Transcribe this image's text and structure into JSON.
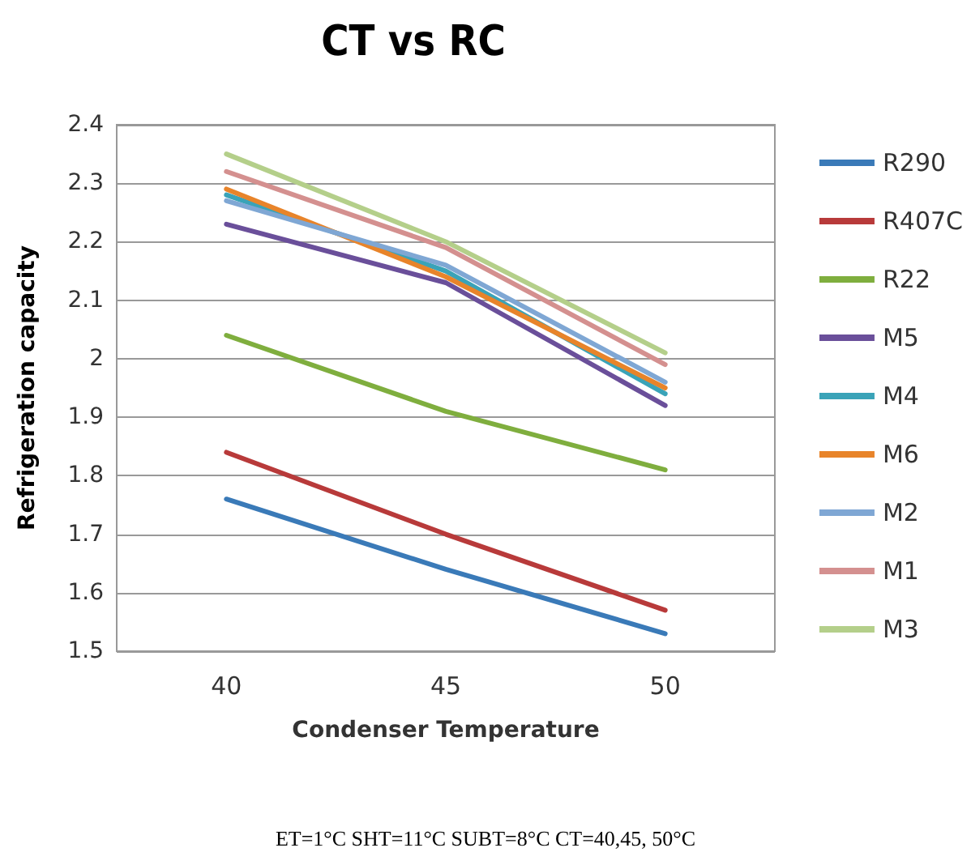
{
  "chart_data": {
    "type": "line",
    "title": "CT vs RC",
    "xlabel": "Condenser Temperature",
    "ylabel": "Refrigeration capacity",
    "categories": [
      "40",
      "45",
      "50"
    ],
    "series": [
      {
        "name": "R290",
        "color": "#3a7ab8",
        "values": [
          1.76,
          1.64,
          1.53
        ]
      },
      {
        "name": "R407C",
        "color": "#b83a3a",
        "values": [
          1.84,
          1.7,
          1.57
        ]
      },
      {
        "name": "R22",
        "color": "#7fae3e",
        "values": [
          2.04,
          1.91,
          1.81
        ]
      },
      {
        "name": "M5",
        "color": "#6a4f9a",
        "values": [
          2.23,
          2.13,
          1.92
        ]
      },
      {
        "name": "M4",
        "color": "#3aa3b8",
        "values": [
          2.28,
          2.15,
          1.94
        ]
      },
      {
        "name": "M6",
        "color": "#e8842a",
        "values": [
          2.29,
          2.14,
          1.95
        ]
      },
      {
        "name": "M2",
        "color": "#7fa7d4",
        "values": [
          2.27,
          2.16,
          1.96
        ]
      },
      {
        "name": "M1",
        "color": "#d4908f",
        "values": [
          2.32,
          2.19,
          1.99
        ]
      },
      {
        "name": "M3",
        "color": "#b4cf8a",
        "values": [
          2.35,
          2.2,
          2.01
        ]
      }
    ],
    "ylim": [
      1.5,
      2.4
    ],
    "yticks": [
      1.5,
      1.6,
      1.7,
      1.8,
      1.9,
      2,
      2.1,
      2.2,
      2.3,
      2.4
    ],
    "grid": "y",
    "legend": "right",
    "marker": "none",
    "line_style": "solid",
    "annotations": [
      "ET=1°C SHT=11°C SUBT=8°C CT=40,45, 50°C"
    ]
  }
}
